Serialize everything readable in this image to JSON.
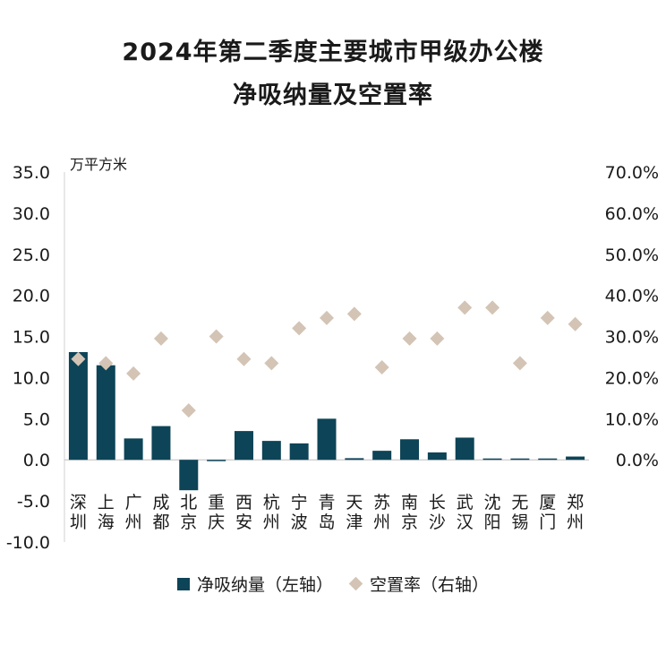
{
  "chart_data": {
    "type": "bar",
    "title": "2024年第二季度主要城市甲级办公楼",
    "subtitle": "净吸纳量及空置率",
    "ylabel": "万平方米",
    "categories": [
      "深圳",
      "上海",
      "广州",
      "成都",
      "北京",
      "重庆",
      "西安",
      "杭州",
      "宁波",
      "青岛",
      "天津",
      "苏州",
      "南京",
      "长沙",
      "武汉",
      "沈阳",
      "无锡",
      "厦门",
      "郑州"
    ],
    "left_axis": {
      "ylim": [
        -10,
        35
      ],
      "ticks": [
        "35.0",
        "30.0",
        "25.0",
        "20.0",
        "15.0",
        "10.0",
        "5.0",
        "0.0",
        "-5.0",
        "-10.0"
      ]
    },
    "right_axis": {
      "ylim": [
        0,
        70
      ],
      "ticks": [
        "70.0%",
        "60.0%",
        "50.0%",
        "40.0%",
        "30.0%",
        "20.0%",
        "10.0%",
        "0.0%"
      ]
    },
    "series": [
      {
        "name": "净吸纳量（左轴）",
        "type": "bar",
        "axis": "left",
        "color": "#0d4457",
        "values": [
          13.1,
          11.5,
          2.6,
          4.1,
          -3.7,
          -0.1,
          3.5,
          2.3,
          2.0,
          5.0,
          0.2,
          1.1,
          2.5,
          0.9,
          2.7,
          0.1,
          0.1,
          0.1,
          0.4
        ]
      },
      {
        "name": "空置率（右轴）",
        "type": "scatter",
        "axis": "right",
        "color": "#d3c4b5",
        "values": [
          24.5,
          23.5,
          21.0,
          29.5,
          12.0,
          30.0,
          24.5,
          23.5,
          32.0,
          34.5,
          35.5,
          22.5,
          29.5,
          29.5,
          37.0,
          37.0,
          23.5,
          34.5,
          33.0
        ]
      }
    ],
    "grid": false,
    "legend_position": "bottom"
  }
}
